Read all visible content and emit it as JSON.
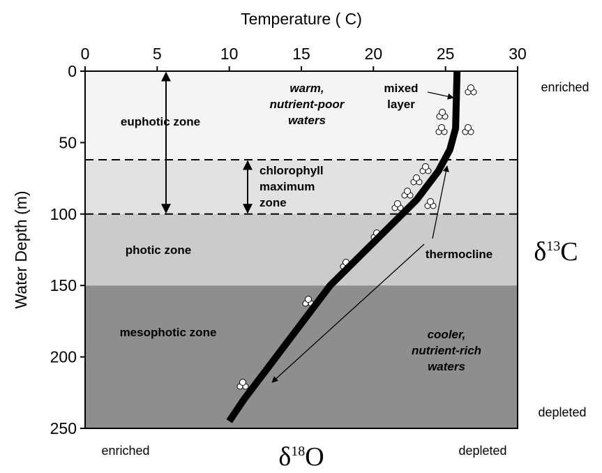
{
  "chart_data": {
    "type": "line",
    "x_label": "Temperature ( C)",
    "y_label": "Water Depth (m)",
    "xlim": [
      0,
      30
    ],
    "ylim": [
      0,
      250
    ],
    "y_inverted": true,
    "xticks": [
      0,
      5,
      10,
      15,
      20,
      25,
      30
    ],
    "yticks": [
      0,
      50,
      100,
      150,
      200,
      250
    ],
    "x": [
      25.8,
      25.75,
      25.7,
      25.3,
      24.5,
      23,
      21,
      19,
      17,
      15.5,
      14,
      12.5,
      11,
      10
    ],
    "series": [
      {
        "color": "#000000",
        "values": [
          0,
          20,
          40,
          55,
          70,
          90,
          110,
          130,
          150,
          170,
          190,
          210,
          230,
          245
        ]
      }
    ],
    "bands": [
      {
        "top": 0,
        "bottom": 62,
        "color": "#f4f4f4"
      },
      {
        "top": 62,
        "bottom": 100,
        "color": "#e2e2e2"
      },
      {
        "top": 100,
        "bottom": 150,
        "color": "#cbcbcb"
      },
      {
        "top": 150,
        "bottom": 250,
        "color": "#8e8e8e"
      }
    ],
    "zones": [
      {
        "label": "euphotic zone",
        "range": [
          0,
          100
        ],
        "arrow": true
      },
      {
        "label": [
          "chlorophyll",
          "maximum",
          "zone"
        ],
        "range": [
          62,
          100
        ],
        "arrow": true
      },
      {
        "label": "photic zone",
        "range": [
          100,
          150
        ],
        "arrow": false
      },
      {
        "label": "mesophotic zone",
        "range": [
          150,
          250
        ],
        "arrow": false
      }
    ],
    "annotations": [
      {
        "lines": [
          "warm,",
          "nutrient-poor",
          "waters"
        ]
      },
      {
        "lines": [
          "mixed",
          "layer"
        ]
      },
      {
        "lines": [
          "thermocline"
        ]
      },
      {
        "lines": [
          "cooler,",
          "nutrient-rich",
          "waters"
        ]
      }
    ],
    "y_isotope": {
      "symbol": "δ",
      "mass": "13",
      "element": "C",
      "top": "enriched",
      "bottom": "depleted"
    },
    "x_isotope": {
      "symbol": "δ",
      "mass": "18",
      "element": "O",
      "left": "enriched",
      "right": "depleted"
    }
  }
}
